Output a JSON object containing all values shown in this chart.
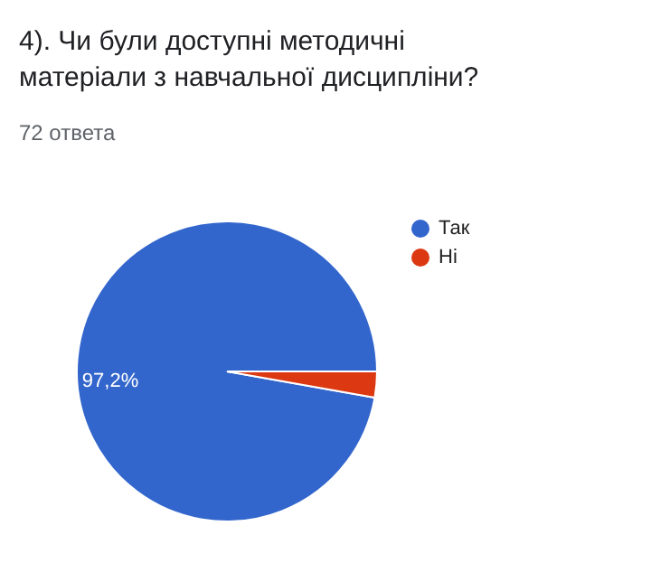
{
  "chart_data": {
    "type": "pie",
    "title": "4). Чи були доступні методичні матеріали з навчальної дисципліни?",
    "subtitle": "72 ответа",
    "categories": [
      "Так",
      "Ні"
    ],
    "values": [
      97.2,
      2.8
    ],
    "colors": [
      "#3366cc",
      "#dc3912"
    ],
    "value_labels": [
      "97,2%",
      null
    ],
    "legend": "right"
  }
}
